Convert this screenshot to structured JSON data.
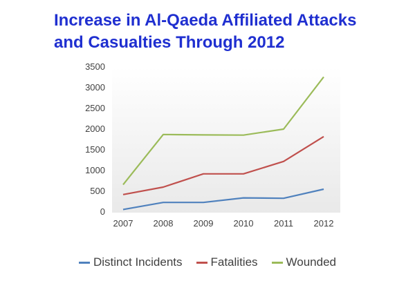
{
  "chart_data": {
    "type": "line",
    "title": "Increase in Al-Qaeda Affiliated Attacks and Casualties Through 2012",
    "title_lines": [
      "Increase in Al-Qaeda Affiliated Attacks",
      "and Casualties Through 2012"
    ],
    "categories": [
      "2007",
      "2008",
      "2009",
      "2010",
      "2011",
      "2012"
    ],
    "ylim": [
      0,
      3500
    ],
    "yticks": [
      0,
      500,
      1000,
      1500,
      2000,
      2500,
      3000,
      3500
    ],
    "grid": false,
    "legend_position": "bottom",
    "series": [
      {
        "name": "Distinct Incidents",
        "color": "#4f81bd",
        "values": [
          60,
          230,
          230,
          340,
          330,
          550
        ]
      },
      {
        "name": "Fatalities",
        "color": "#c0504d",
        "values": [
          420,
          600,
          920,
          920,
          1220,
          1820
        ]
      },
      {
        "name": "Wounded",
        "color": "#9bbb59",
        "values": [
          660,
          1870,
          1860,
          1855,
          2000,
          3260
        ]
      }
    ]
  }
}
